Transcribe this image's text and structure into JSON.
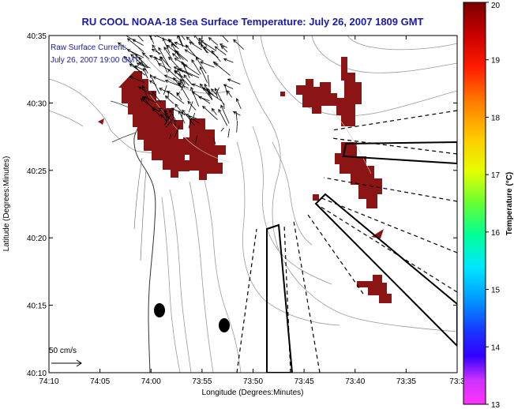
{
  "title": "RU COOL  NOAA-18  Sea Surface Temperature:  July 26, 2007 1809 GMT",
  "annotation": {
    "line1": "Raw Surface Current:",
    "line2": "July 26, 2007 19:00 GMT"
  },
  "axes": {
    "xlabel": "Longitude (Degrees:Minutes)",
    "ylabel": "Latitude (Degrees:Minutes)",
    "x_ticks": [
      "74:10",
      "74:05",
      "74:00",
      "73:55",
      "73:50",
      "73:45",
      "73:40",
      "73:35",
      "73:3"
    ],
    "y_ticks": [
      "40:35",
      "40:30",
      "40:25",
      "40:20",
      "40:15",
      "40:10"
    ]
  },
  "colorbar": {
    "label": "Temperature (°C)",
    "ticks": [
      "20",
      "19",
      "18",
      "17",
      "16",
      "15",
      "14",
      "13"
    ],
    "min": 13,
    "max": 20
  },
  "scale_arrow": {
    "label": "50 cm/s"
  },
  "colors": {
    "warm_water": "#8b1414",
    "title_text": "#1a1aa8",
    "contour": "#999999",
    "coast": "#333333"
  }
}
